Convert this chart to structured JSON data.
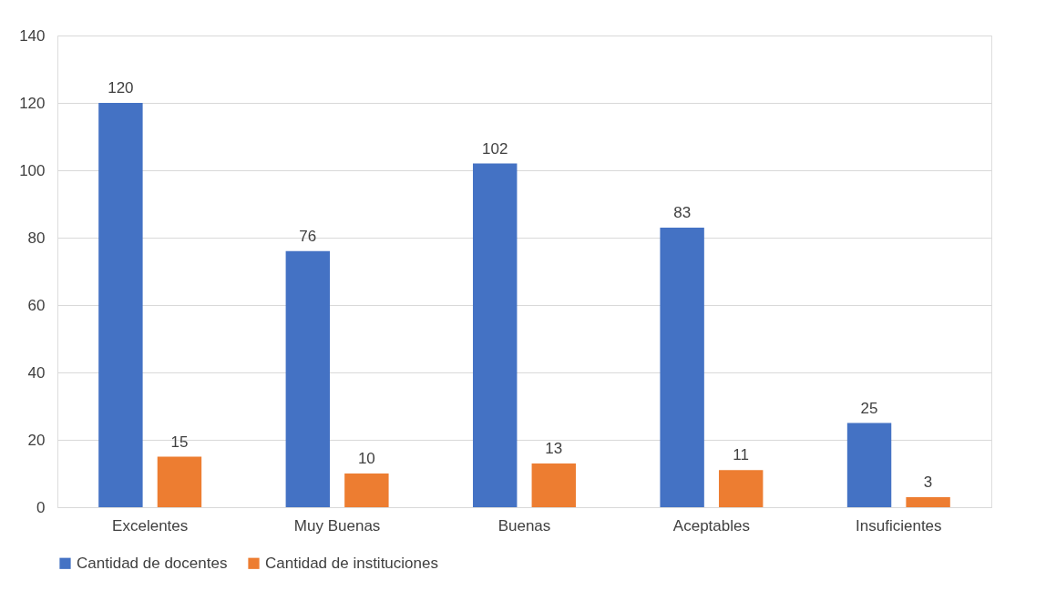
{
  "chart_data": {
    "type": "bar",
    "categories": [
      "Excelentes",
      "Muy Buenas",
      "Buenas",
      "Aceptables",
      "Insuficientes"
    ],
    "series": [
      {
        "name": "Cantidad de docentes",
        "color": "#4472c4",
        "values": [
          120,
          76,
          102,
          83,
          25
        ]
      },
      {
        "name": "Cantidad de instituciones",
        "color": "#ed7d31",
        "values": [
          15,
          10,
          13,
          11,
          3
        ]
      }
    ],
    "ylim": [
      0,
      140
    ],
    "yticks": [
      0,
      20,
      40,
      60,
      80,
      100,
      120,
      140
    ],
    "grid": "y",
    "legend": "bottom",
    "data_labels": true
  }
}
